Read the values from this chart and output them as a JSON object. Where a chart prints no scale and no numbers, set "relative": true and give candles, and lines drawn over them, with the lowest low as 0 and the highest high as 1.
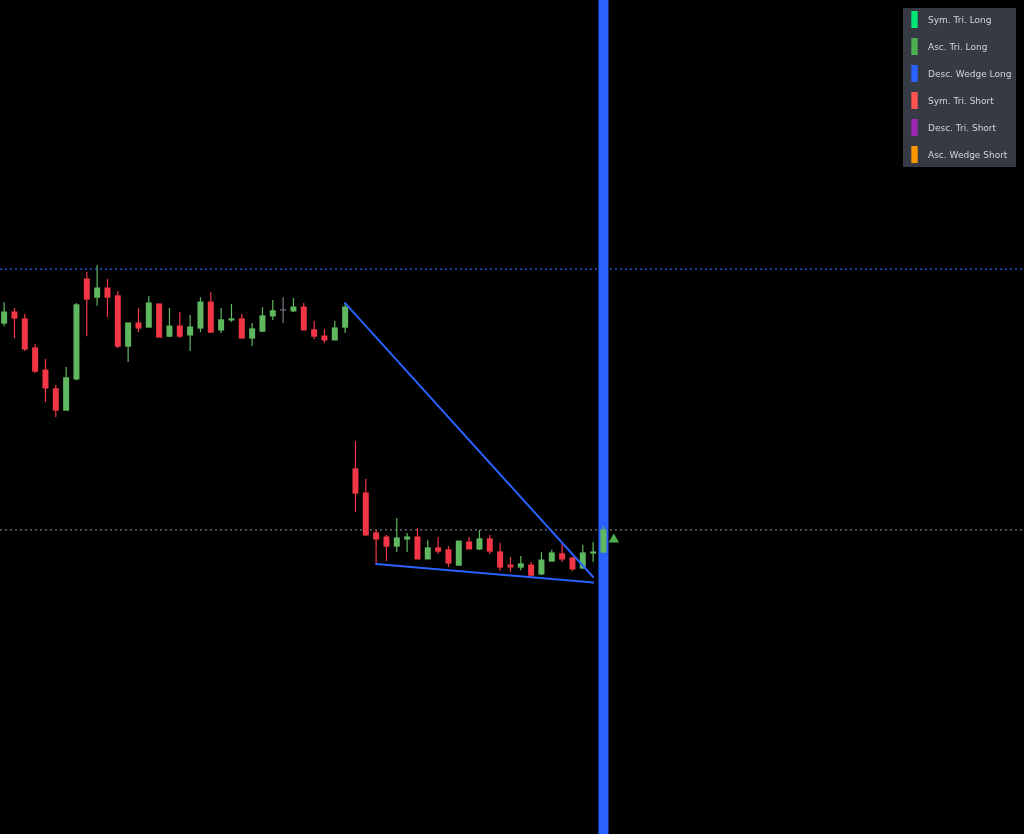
{
  "chart_data": {
    "type": "candlestick",
    "relative": true,
    "legend": "top right",
    "categories": [
      null,
      null,
      null,
      null,
      null,
      null,
      null,
      null,
      null,
      null,
      null,
      null,
      null,
      null,
      null,
      null,
      null,
      null,
      null,
      null,
      null,
      null,
      null,
      null,
      null,
      null,
      null,
      null,
      null,
      null,
      null,
      null,
      null,
      null,
      null,
      null,
      null,
      null,
      null,
      null,
      null,
      null,
      null,
      null,
      null,
      null,
      null,
      null,
      null,
      null,
      null,
      null,
      null,
      null,
      null,
      null,
      null,
      null,
      null,
      null
    ],
    "ohlc": [
      [
        0.814,
        0.881,
        0.804,
        0.849
      ],
      [
        0.849,
        0.862,
        0.766,
        0.83
      ],
      [
        0.827,
        0.843,
        0.724,
        0.731
      ],
      [
        0.734,
        0.747,
        0.654,
        0.66
      ],
      [
        0.663,
        0.699,
        0.561,
        0.606
      ],
      [
        0.603,
        0.615,
        0.513,
        0.535
      ],
      [
        0.535,
        0.673,
        0.535,
        0.638
      ],
      [
        0.635,
        0.878,
        0.631,
        0.872
      ],
      [
        0.955,
        0.978,
        0.772,
        0.891
      ],
      [
        0.897,
        1.0,
        0.869,
        0.926
      ],
      [
        0.926,
        0.955,
        0.833,
        0.897
      ],
      [
        0.901,
        0.917,
        0.734,
        0.74
      ],
      [
        0.74,
        0.814,
        0.689,
        0.814
      ],
      [
        0.814,
        0.862,
        0.785,
        0.798
      ],
      [
        0.801,
        0.901,
        0.801,
        0.878
      ],
      [
        0.875,
        0.875,
        0.769,
        0.769
      ],
      [
        0.772,
        0.862,
        0.769,
        0.804
      ],
      [
        0.804,
        0.849,
        0.766,
        0.772
      ],
      [
        0.776,
        0.84,
        0.724,
        0.801
      ],
      [
        0.798,
        0.897,
        0.785,
        0.881
      ],
      [
        0.881,
        0.913,
        0.782,
        0.785
      ],
      [
        0.792,
        0.862,
        0.782,
        0.824
      ],
      [
        0.824,
        0.875,
        0.817,
        0.827
      ],
      [
        0.827,
        0.843,
        0.766,
        0.766
      ],
      [
        0.766,
        0.814,
        0.74,
        0.795
      ],
      [
        0.788,
        0.865,
        0.785,
        0.837
      ],
      [
        0.837,
        0.888,
        0.824,
        0.853
      ],
      [
        0.856,
        0.897,
        0.814,
        0.856
      ],
      [
        0.853,
        0.894,
        0.849,
        0.865
      ],
      [
        0.865,
        0.878,
        0.792,
        0.792
      ],
      [
        0.792,
        0.821,
        0.763,
        0.772
      ],
      [
        0.772,
        0.795,
        0.75,
        0.76
      ],
      [
        0.76,
        0.821,
        0.76,
        0.798
      ],
      [
        0.801,
        0.878,
        0.782,
        0.865
      ],
      [
        0.346,
        0.436,
        0.208,
        0.269
      ],
      [
        0.269,
        0.314,
        0.131,
        0.135
      ],
      [
        0.141,
        0.151,
        0.042,
        0.122
      ],
      [
        0.128,
        0.135,
        0.051,
        0.099
      ],
      [
        0.099,
        0.189,
        0.08,
        0.125
      ],
      [
        0.122,
        0.141,
        0.08,
        0.128
      ],
      [
        0.128,
        0.157,
        0.058,
        0.058
      ],
      [
        0.058,
        0.119,
        0.058,
        0.093
      ],
      [
        0.093,
        0.128,
        0.074,
        0.083
      ],
      [
        0.087,
        0.099,
        0.032,
        0.045
      ],
      [
        0.038,
        0.115,
        0.038,
        0.115
      ],
      [
        0.112,
        0.128,
        0.09,
        0.09
      ],
      [
        0.09,
        0.151,
        0.087,
        0.122
      ],
      [
        0.122,
        0.135,
        0.074,
        0.083
      ],
      [
        0.08,
        0.109,
        0.019,
        0.032
      ],
      [
        0.038,
        0.064,
        0.016,
        0.032
      ],
      [
        0.032,
        0.067,
        0.022,
        0.042
      ],
      [
        0.038,
        0.048,
        0.0,
        0.006
      ],
      [
        0.01,
        0.08,
        0.006,
        0.054
      ],
      [
        0.051,
        0.087,
        0.051,
        0.077
      ],
      [
        0.074,
        0.106,
        0.048,
        0.058
      ],
      [
        0.061,
        0.064,
        0.019,
        0.026
      ],
      [
        0.029,
        0.103,
        0.026,
        0.077
      ],
      [
        0.077,
        0.112,
        0.048,
        0.08
      ],
      [
        0.08,
        0.163,
        0.08,
        0.151
      ],
      null
    ],
    "colors": [
      "#5fb760",
      "#f23645",
      "#f23645",
      "#f23645",
      "#f23645",
      "#f23645",
      "#5fb760",
      "#5fb760",
      "#f23645",
      "#5fb760",
      "#f23645",
      "#f23645",
      "#5fb760",
      "#f23645",
      "#5fb760",
      "#f23645",
      "#5fb760",
      "#f23645",
      "#5fb760",
      "#5fb760",
      "#f23645",
      "#5fb760",
      "#5fb760",
      "#f23645",
      "#5fb760",
      "#5fb760",
      "#5fb760",
      "#787b86",
      "#5fb760",
      "#f23645",
      "#f23645",
      "#f23645",
      "#5fb760",
      "#5fb760",
      "#f23645",
      "#f23645",
      "#f23645",
      "#f23645",
      "#5fb760",
      "#5fb760",
      "#f23645",
      "#5fb760",
      "#f23645",
      "#f23645",
      "#5fb760",
      "#f23645",
      "#5fb760",
      "#f23645",
      "#f23645",
      "#f23645",
      "#5fb760",
      "#f23645",
      "#5fb760",
      "#5fb760",
      "#f23645",
      "#f23645",
      "#5fb760",
      "#5fb760",
      "#5fb760",
      null
    ],
    "series": [
      {
        "name": "Sym. Tri. Long",
        "color": "#00e676",
        "values": [
          null,
          null,
          null,
          null,
          null,
          null,
          null,
          null,
          null,
          null,
          null,
          null,
          null,
          null,
          null,
          null,
          null,
          null,
          null,
          null,
          null,
          null,
          null,
          null,
          null,
          null,
          null,
          null,
          null,
          null,
          null,
          null,
          null,
          null,
          null,
          null,
          null,
          null,
          null,
          null,
          null,
          null,
          null,
          null,
          null,
          null,
          null,
          null,
          null,
          null,
          null,
          null,
          null,
          null,
          null,
          null,
          null,
          null,
          null,
          null
        ]
      },
      {
        "name": "Asc. Tri. Long",
        "color": "#4caf50",
        "values": [
          null,
          null,
          null,
          null,
          null,
          null,
          null,
          null,
          null,
          null,
          null,
          null,
          null,
          null,
          null,
          null,
          null,
          null,
          null,
          null,
          null,
          null,
          null,
          null,
          null,
          null,
          null,
          null,
          null,
          null,
          null,
          null,
          null,
          null,
          null,
          null,
          null,
          null,
          null,
          null,
          null,
          null,
          null,
          null,
          null,
          null,
          null,
          null,
          null,
          null,
          null,
          null,
          null,
          null,
          null,
          null,
          null,
          null,
          null,
          null
        ]
      },
      {
        "type": "line",
        "name": "Desc. Wedge Long",
        "color": "#2962ff",
        "values": [
          null,
          null,
          null,
          null,
          null,
          null,
          null,
          null,
          null,
          null,
          null,
          null,
          null,
          null,
          null,
          null,
          null,
          null,
          null,
          null,
          null,
          null,
          null,
          null,
          null,
          null,
          null,
          null,
          null,
          null,
          null,
          null,
          null,
          0.878,
          null,
          null,
          null,
          null,
          null,
          null,
          null,
          null,
          null,
          null,
          null,
          null,
          null,
          null,
          null,
          null,
          null,
          null,
          null,
          null,
          null,
          null,
          null,
          0.0,
          null,
          null
        ]
      },
      {
        "type": "line",
        "color": "#2962ff",
        "values": [
          null,
          null,
          null,
          null,
          null,
          null,
          null,
          null,
          null,
          null,
          null,
          null,
          null,
          null,
          null,
          null,
          null,
          null,
          null,
          null,
          null,
          null,
          null,
          null,
          null,
          null,
          null,
          null,
          null,
          null,
          null,
          null,
          null,
          null,
          null,
          null,
          0.042,
          null,
          null,
          null,
          null,
          null,
          null,
          null,
          null,
          null,
          null,
          null,
          null,
          null,
          null,
          null,
          null,
          null,
          null,
          null,
          null,
          -0.018,
          null,
          null
        ]
      },
      {
        "type": "scatter",
        "color": "#4caf50",
        "marker": "triangle",
        "values": [
          null,
          null,
          null,
          null,
          null,
          null,
          null,
          null,
          null,
          null,
          null,
          null,
          null,
          null,
          null,
          null,
          null,
          null,
          null,
          null,
          null,
          null,
          null,
          null,
          null,
          null,
          null,
          null,
          null,
          null,
          null,
          null,
          null,
          null,
          null,
          null,
          null,
          null,
          null,
          null,
          null,
          null,
          null,
          null,
          null,
          null,
          null,
          null,
          null,
          null,
          null,
          null,
          null,
          null,
          null,
          null,
          null,
          null,
          null,
          0.125
        ]
      },
      {
        "name": "Sym. Tri. Short",
        "color": "#ff5252",
        "values": [
          null,
          null,
          null,
          null,
          null,
          null,
          null,
          null,
          null,
          null,
          null,
          null,
          null,
          null,
          null,
          null,
          null,
          null,
          null,
          null,
          null,
          null,
          null,
          null,
          null,
          null,
          null,
          null,
          null,
          null,
          null,
          null,
          null,
          null,
          null,
          null,
          null,
          null,
          null,
          null,
          null,
          null,
          null,
          null,
          null,
          null,
          null,
          null,
          null,
          null,
          null,
          null,
          null,
          null,
          null,
          null,
          null,
          null,
          null,
          null
        ]
      },
      {
        "name": "Desc. Tri. Short",
        "color": "#9c27b0",
        "values": [
          null,
          null,
          null,
          null,
          null,
          null,
          null,
          null,
          null,
          null,
          null,
          null,
          null,
          null,
          null,
          null,
          null,
          null,
          null,
          null,
          null,
          null,
          null,
          null,
          null,
          null,
          null,
          null,
          null,
          null,
          null,
          null,
          null,
          null,
          null,
          null,
          null,
          null,
          null,
          null,
          null,
          null,
          null,
          null,
          null,
          null,
          null,
          null,
          null,
          null,
          null,
          null,
          null,
          null,
          null,
          null,
          null,
          null,
          null,
          null
        ]
      },
      {
        "name": "Asc. Wedge Short",
        "color": "#ff9800",
        "values": [
          null,
          null,
          null,
          null,
          null,
          null,
          null,
          null,
          null,
          null,
          null,
          null,
          null,
          null,
          null,
          null,
          null,
          null,
          null,
          null,
          null,
          null,
          null,
          null,
          null,
          null,
          null,
          null,
          null,
          null,
          null,
          null,
          null,
          null,
          null,
          null,
          null,
          null,
          null,
          null,
          null,
          null,
          null,
          null,
          null,
          null,
          null,
          null,
          null,
          null,
          null,
          null,
          null,
          null,
          null,
          null,
          null,
          null,
          null,
          null
        ]
      }
    ],
    "ref_lines": [
      {
        "axis": "y",
        "value": 0.151,
        "color": "#787b86",
        "line_style": "dotted"
      },
      {
        "axis": "x",
        "color": "#2962ff"
      },
      {
        "axis": "y",
        "value": 0.987,
        "color": "#2962ff",
        "line_style": "dotted"
      }
    ]
  }
}
